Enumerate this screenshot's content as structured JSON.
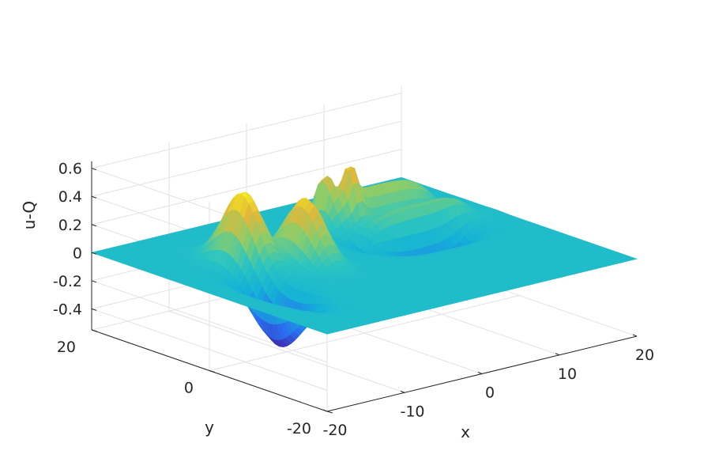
{
  "chart_data": {
    "type": "surface",
    "title": "",
    "xlabel": "x",
    "ylabel": "y",
    "zlabel": "u-Q",
    "xlim": [
      -20,
      20
    ],
    "ylim": [
      -20,
      20
    ],
    "zlim": [
      -0.55,
      0.65
    ],
    "xticks": [
      -20,
      -10,
      0,
      10,
      20
    ],
    "xtick_labels": [
      "-20",
      "-10",
      "0",
      "10",
      "20"
    ],
    "yticks": [
      -20,
      0,
      20
    ],
    "ytick_labels": [
      "-20",
      "0",
      "20"
    ],
    "zticks": [
      -0.4,
      -0.2,
      0,
      0.2,
      0.4,
      0.6
    ],
    "ztick_labels": [
      "-0.4",
      "-0.2",
      "0",
      "0.2",
      "0.4",
      "0.6"
    ],
    "grid": true,
    "colormap": "parula",
    "colormap_colors": [
      "#3e26a8",
      "#2a6ff0",
      "#13b1d7",
      "#2cc5c0",
      "#8bcd6a",
      "#e2b83a",
      "#f9fb15"
    ],
    "peak_max": 0.54,
    "trough_min": -0.4
  }
}
